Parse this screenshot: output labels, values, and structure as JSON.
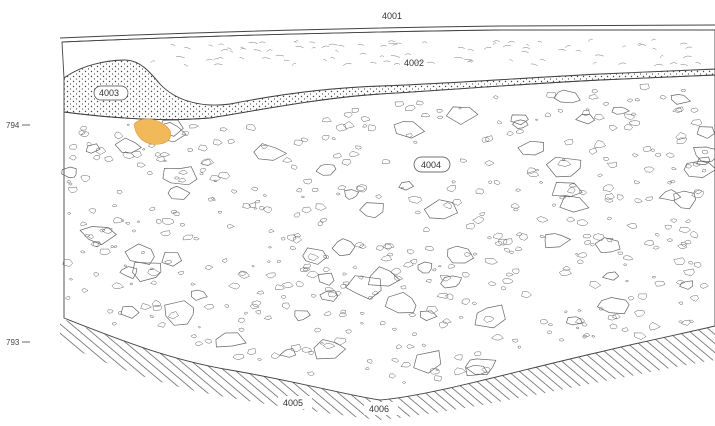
{
  "section": {
    "elevations": [
      {
        "label": "794"
      },
      {
        "label": "793"
      }
    ],
    "contexts": [
      {
        "label": "4001"
      },
      {
        "label": "4002"
      },
      {
        "label": "4003"
      },
      {
        "label": "4004"
      },
      {
        "label": "4005"
      },
      {
        "label": "4006"
      }
    ],
    "colors": {
      "line": "#444444",
      "inclusion": "#f2b95a",
      "hatch": "#555555"
    }
  }
}
